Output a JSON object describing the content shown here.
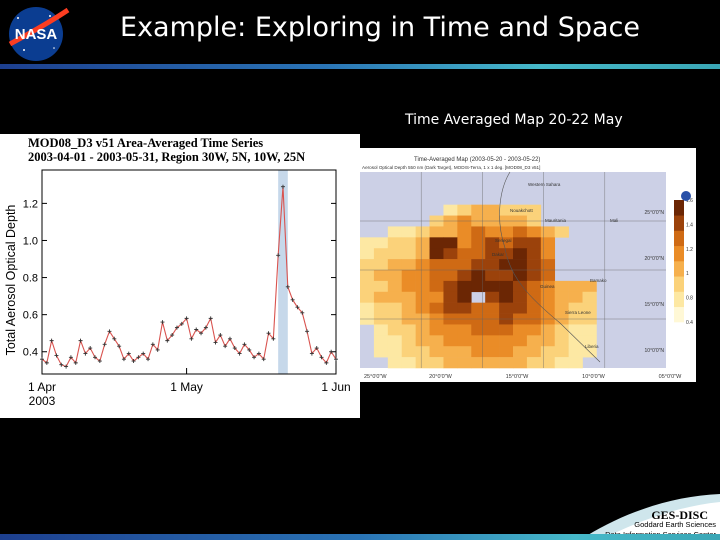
{
  "slide": {
    "title": "Example: Exploring in Time and Space",
    "map_caption": "Time Averaged Map 20-22 May",
    "logo_text": "NASA"
  },
  "footer": {
    "org": "GES-DISC",
    "line1": "Goddard Earth Sciences",
    "line2": "Data Information Services Center"
  },
  "chart_data": [
    {
      "type": "line",
      "title": "MOD08_D3 v51 Area-Averaged Time Series",
      "subtitle": "2003-04-01 - 2003-05-31, Region 30W, 5N, 10W, 25N",
      "ylabel": "Total Aerosol Optical Depth",
      "xlabel": "",
      "ylim": [
        0.28,
        1.38
      ],
      "yticks": [
        "1.2",
        "1.0",
        "0.8",
        "0.6",
        "0.4"
      ],
      "ytick_values": [
        1.2,
        1.0,
        0.8,
        0.6,
        0.4
      ],
      "x_ticks": [
        {
          "label": "1 Apr",
          "day": 1
        },
        {
          "label": "1 May",
          "day": 31
        },
        {
          "label": "1 Jun",
          "day": 62
        }
      ],
      "x_sub_label": "2003",
      "x_range": [
        1,
        62
      ],
      "highlight_days": [
        50,
        52
      ],
      "highlight_color": "#c6d8ea",
      "line_color": "#d9534f",
      "series": [
        {
          "x": [
            1,
            2,
            3,
            4,
            5,
            6,
            7,
            8,
            9,
            10,
            11,
            12,
            13,
            14,
            15,
            16,
            17,
            18,
            19,
            20,
            21,
            22,
            23,
            24,
            25,
            26,
            27,
            28,
            29,
            30,
            31,
            32,
            33,
            34,
            35,
            36,
            37,
            38,
            39,
            40,
            41,
            42,
            43,
            44,
            45,
            46,
            47,
            48,
            49,
            50,
            51,
            52,
            53,
            54,
            55,
            56,
            57,
            58,
            59,
            60,
            61,
            62
          ],
          "values": [
            0.36,
            0.34,
            0.46,
            0.38,
            0.33,
            0.32,
            0.37,
            0.34,
            0.46,
            0.39,
            0.42,
            0.37,
            0.35,
            0.44,
            0.51,
            0.47,
            0.43,
            0.36,
            0.39,
            0.35,
            0.37,
            0.39,
            0.36,
            0.44,
            0.41,
            0.56,
            0.46,
            0.49,
            0.53,
            0.55,
            0.58,
            0.47,
            0.52,
            0.5,
            0.53,
            0.58,
            0.45,
            0.49,
            0.43,
            0.47,
            0.42,
            0.39,
            0.44,
            0.41,
            0.37,
            0.39,
            0.36,
            0.5,
            0.47,
            0.92,
            1.29,
            0.75,
            0.68,
            0.64,
            0.61,
            0.51,
            0.39,
            0.42,
            0.37,
            0.34,
            0.4,
            0.36
          ]
        }
      ]
    },
    {
      "type": "heatmap",
      "title": "Time-Averaged Map (2003-05-20 - 2003-05-22)",
      "subtitle": "Aerosol Optical Depth 550 nm (Dark Target), MODIS-Terra, 1 x 1 deg. [MOD08_D3 v51]",
      "x_tick_labels": [
        "25°0'0\"W",
        "20°0'0\"W",
        "15°0'0\"W",
        "10°0'0\"W",
        "05°0'0\"W"
      ],
      "y_tick_labels": [
        "25°0'0\"N",
        "20°0'0\"N",
        "15°0'0\"N",
        "10°0'0\"N"
      ],
      "legend_ticks": [
        "0.4",
        "0.8",
        "1",
        "1.2",
        "1.4",
        "1.6"
      ],
      "place_labels": [
        "Western Sahara",
        "Mauritania",
        "Mali",
        "Senegal",
        "Guinea",
        "Sierra Leone",
        "Liberia",
        "Dakar",
        "Nouakchott",
        "Bamako"
      ],
      "colorscale": [
        "#fff8d6",
        "#fde8a3",
        "#fbd27a",
        "#f6b04d",
        "#ea8c27",
        "#cf6a14",
        "#9b420b",
        "#6b2604"
      ],
      "grid": [
        [
          0,
          0,
          0,
          0,
          0,
          0,
          0,
          0,
          0,
          0,
          0,
          0,
          0,
          0,
          0,
          0,
          0,
          0,
          0,
          0,
          0,
          0
        ],
        [
          0,
          0,
          0,
          0,
          0,
          0,
          0,
          0,
          0,
          0,
          0,
          0,
          0,
          0,
          0,
          0,
          0,
          0,
          0,
          0,
          0,
          0
        ],
        [
          0,
          0,
          0,
          0,
          0,
          0,
          0,
          0,
          0,
          0,
          0,
          0,
          0,
          0,
          0,
          0,
          0,
          0,
          0,
          0,
          0,
          0
        ],
        [
          0,
          0,
          0,
          0,
          0,
          0,
          1,
          2,
          3,
          3,
          2,
          2,
          2,
          0,
          0,
          0,
          0,
          0,
          0,
          0,
          0,
          0
        ],
        [
          0,
          0,
          0,
          0,
          0,
          2,
          3,
          4,
          3,
          3,
          3,
          3,
          2,
          0,
          0,
          0,
          0,
          0,
          0,
          0,
          0,
          0
        ],
        [
          0,
          0,
          1,
          1,
          2,
          3,
          3,
          4,
          5,
          4,
          4,
          5,
          4,
          3,
          2,
          0,
          0,
          0,
          0,
          0,
          0,
          0
        ],
        [
          1,
          1,
          2,
          2,
          3,
          7,
          7,
          4,
          5,
          6,
          5,
          6,
          6,
          4,
          0,
          0,
          0,
          0,
          0,
          0,
          0,
          0
        ],
        [
          1,
          2,
          2,
          2,
          3,
          7,
          6,
          5,
          5,
          6,
          6,
          7,
          6,
          4,
          0,
          0,
          0,
          0,
          0,
          0,
          0,
          0
        ],
        [
          2,
          2,
          3,
          3,
          4,
          5,
          5,
          5,
          6,
          6,
          7,
          7,
          6,
          5,
          0,
          0,
          0,
          0,
          0,
          0,
          0,
          0
        ],
        [
          2,
          3,
          3,
          4,
          4,
          5,
          5,
          6,
          7,
          6,
          6,
          7,
          6,
          5,
          0,
          0,
          0,
          0,
          0,
          0,
          0,
          0
        ],
        [
          2,
          2,
          3,
          4,
          4,
          5,
          6,
          7,
          7,
          7,
          7,
          6,
          5,
          4,
          3,
          3,
          3,
          0,
          0,
          0,
          0,
          0
        ],
        [
          2,
          3,
          3,
          3,
          4,
          4,
          6,
          7,
          0,
          6,
          7,
          6,
          5,
          4,
          3,
          3,
          2,
          0,
          0,
          0,
          0,
          0
        ],
        [
          1,
          2,
          2,
          3,
          4,
          5,
          6,
          6,
          5,
          5,
          6,
          6,
          5,
          4,
          3,
          2,
          2,
          0,
          0,
          0,
          0,
          0
        ],
        [
          1,
          2,
          2,
          3,
          3,
          4,
          5,
          5,
          5,
          5,
          6,
          5,
          5,
          4,
          3,
          2,
          2,
          0,
          0,
          0,
          0,
          0
        ],
        [
          0,
          1,
          2,
          2,
          3,
          4,
          4,
          4,
          5,
          5,
          5,
          4,
          4,
          3,
          2,
          1,
          1,
          0,
          0,
          0,
          0,
          0
        ],
        [
          0,
          1,
          1,
          2,
          3,
          3,
          4,
          4,
          4,
          4,
          4,
          4,
          3,
          3,
          2,
          1,
          1,
          0,
          0,
          0,
          0,
          0
        ],
        [
          0,
          1,
          1,
          2,
          2,
          3,
          3,
          3,
          4,
          4,
          4,
          3,
          3,
          2,
          2,
          1,
          1,
          0,
          0,
          0,
          0,
          0
        ],
        [
          0,
          0,
          1,
          1,
          2,
          2,
          3,
          3,
          3,
          3,
          3,
          3,
          2,
          2,
          1,
          1,
          0,
          0,
          0,
          0,
          0,
          0
        ]
      ]
    }
  ]
}
